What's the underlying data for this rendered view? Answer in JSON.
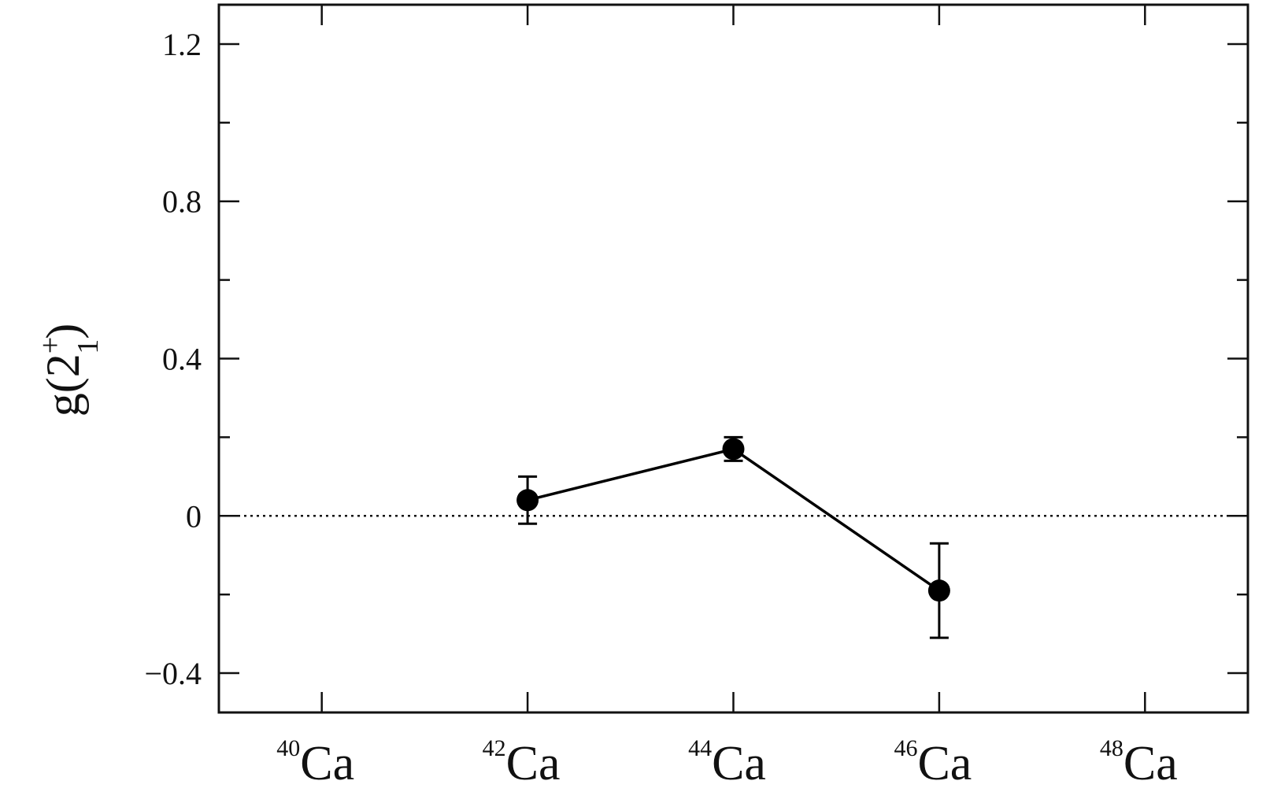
{
  "chart_data": {
    "type": "scatter",
    "title": "",
    "ylabel": {
      "base": "g(2",
      "superscript": "+",
      "subscript": "1",
      "close": ")"
    },
    "xlabel": "",
    "ylim": [
      -0.5,
      1.3
    ],
    "xlim": [
      39,
      49
    ],
    "grid": false,
    "y_ticks": [
      {
        "value": -0.4,
        "label": "−0.4"
      },
      {
        "value": 0,
        "label": "0"
      },
      {
        "value": 0.4,
        "label": "0.4"
      },
      {
        "value": 0.8,
        "label": "0.8"
      },
      {
        "value": 1.2,
        "label": "1.2"
      }
    ],
    "y_minor_ticks": [
      -0.2,
      0.2,
      0.6,
      1.0
    ],
    "x_ticks": [
      {
        "value": 40,
        "mass": "40",
        "element": "Ca"
      },
      {
        "value": 42,
        "mass": "42",
        "element": "Ca"
      },
      {
        "value": 44,
        "mass": "44",
        "element": "Ca"
      },
      {
        "value": 46,
        "mass": "46",
        "element": "Ca"
      },
      {
        "value": 48,
        "mass": "48",
        "element": "Ca"
      }
    ],
    "reference_line": {
      "y": 0,
      "style": "dotted"
    },
    "series": [
      {
        "points": [
          {
            "x": 42,
            "y": 0.04,
            "err_low": 0.06,
            "err_high": 0.06
          },
          {
            "x": 44,
            "y": 0.17,
            "err_low": 0.03,
            "err_high": 0.03
          },
          {
            "x": 46,
            "y": -0.19,
            "err_low": 0.12,
            "err_high": 0.12
          }
        ],
        "color": "#000000",
        "connected": true
      }
    ]
  }
}
